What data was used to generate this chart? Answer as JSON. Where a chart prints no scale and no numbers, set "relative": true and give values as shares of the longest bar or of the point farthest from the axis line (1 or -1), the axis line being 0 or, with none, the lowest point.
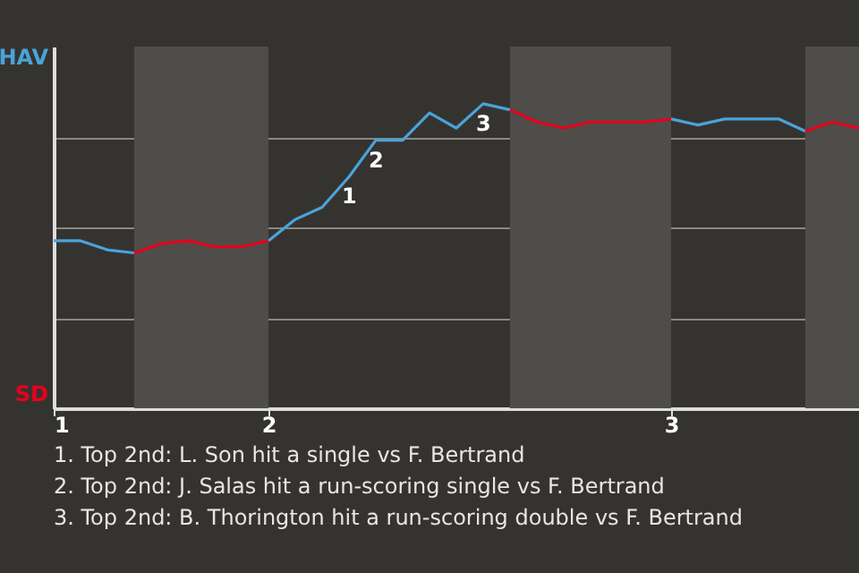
{
  "chart_data": {
    "type": "line",
    "categories": [
      "1",
      null,
      null,
      null,
      null,
      null,
      null,
      null,
      "2",
      null,
      null,
      null,
      null,
      null,
      null,
      null,
      null,
      null,
      null,
      null,
      null,
      null,
      null,
      "3",
      null,
      null,
      null,
      null,
      null,
      null,
      null
    ],
    "relative": true,
    "series": [
      {
        "color": "#4aa3d9",
        "values": [
          0.55,
          0.55,
          0.52,
          0.51,
          null,
          null,
          null,
          null,
          0.55,
          0.62,
          0.66,
          0.76,
          0.88,
          0.88,
          0.97,
          0.92,
          1,
          0.98,
          null,
          null,
          null,
          null,
          null,
          0.95,
          0.93,
          0.95,
          0.95,
          0.95,
          0.91,
          null,
          null
        ]
      },
      {
        "color": "#e8001c",
        "values": [
          null,
          null,
          null,
          0.51,
          0.54,
          0.55,
          0.53,
          0.53,
          0.55,
          null,
          null,
          null,
          null,
          null,
          null,
          null,
          null,
          0.98,
          0.94,
          0.92,
          0.94,
          0.94,
          0.94,
          0.95,
          null,
          null,
          null,
          null,
          0.91,
          0.94,
          0.92
        ]
      }
    ],
    "grid": "y",
    "marker": "none",
    "line_style": "solid",
    "annotations": [
      {
        "text": "1",
        "y": 0.76
      },
      {
        "text": "2",
        "y": 0.88
      },
      {
        "text": "3",
        "y": 1
      },
      "HAV",
      "SD",
      "1. Top 2nd: L. Son hit a single vs F. Bertrand",
      "2. Top 2nd: J. Salas hit a run-scoring single vs F. Bertrand",
      "3. Top 2nd: B. Thorington hit a run-scoring double vs F. Bertrand"
    ]
  }
}
